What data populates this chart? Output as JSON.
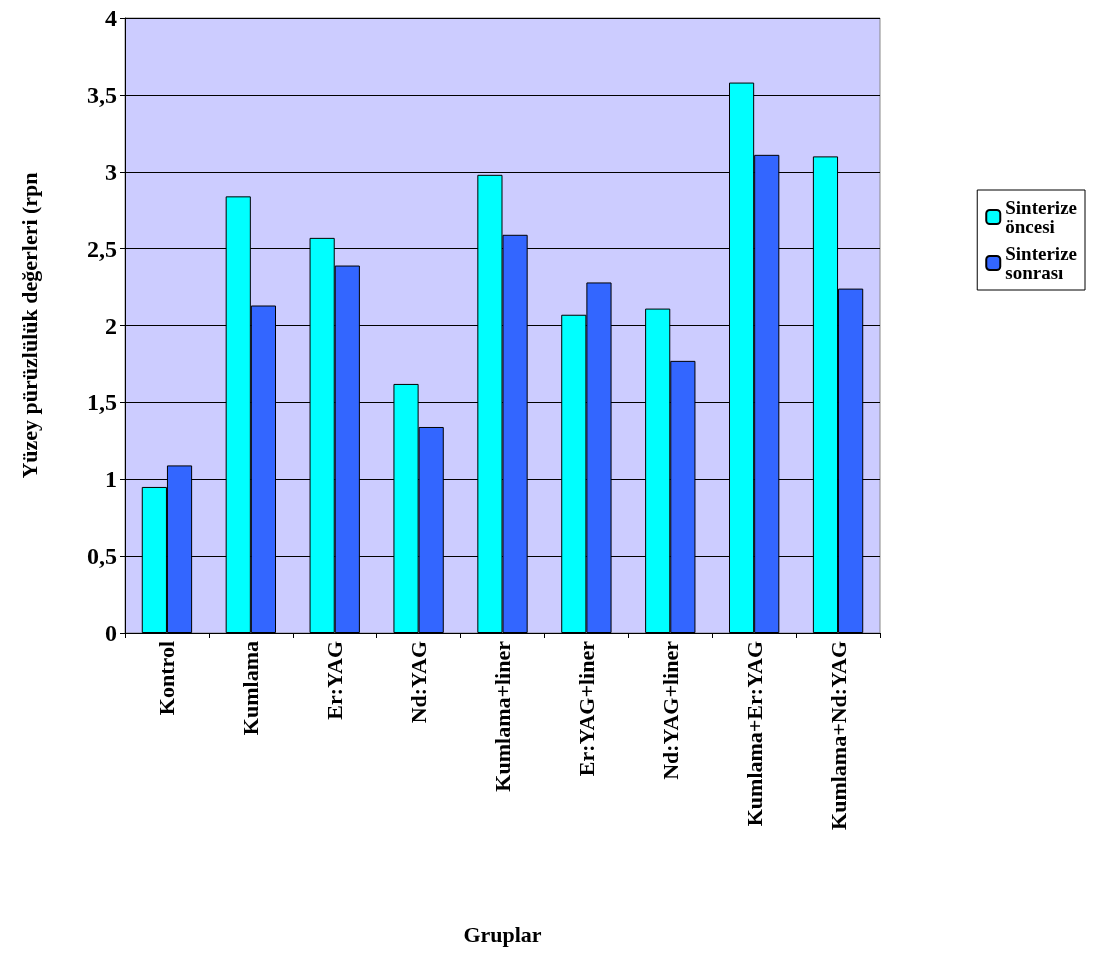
{
  "chart_data": {
    "type": "bar",
    "categories": [
      "Kontrol",
      "Kumlama",
      "Er:YAG",
      "Nd:YAG",
      "Kumlama+liner",
      "Er:YAG+liner",
      "Nd:YAG+liner",
      "Kumlama+Er:YAG",
      "Kumlama+Nd:YAG"
    ],
    "series": [
      {
        "name": "Sinterize öncesi",
        "color": "#00ffff",
        "values": [
          0.95,
          2.84,
          2.57,
          1.62,
          2.98,
          2.07,
          2.11,
          3.58,
          3.1
        ]
      },
      {
        "name": "Sinterize sonrası",
        "color": "#3366ff",
        "values": [
          1.09,
          2.13,
          2.39,
          1.34,
          2.59,
          2.28,
          1.77,
          3.11,
          2.24
        ]
      }
    ],
    "xlabel": "Gruplar",
    "ylabel": "Yüzey pürüzlülük değerleri (rpn",
    "ylim": [
      0,
      4
    ],
    "yticks": [
      0,
      {
        "value": 0.5,
        "label": "0,5"
      },
      1,
      {
        "value": 1.5,
        "label": "1,5"
      },
      2,
      {
        "value": 2.5,
        "label": "2,5"
      },
      3,
      {
        "value": 3.5,
        "label": "3,5"
      },
      4
    ],
    "grid": "y",
    "legend": "right"
  }
}
